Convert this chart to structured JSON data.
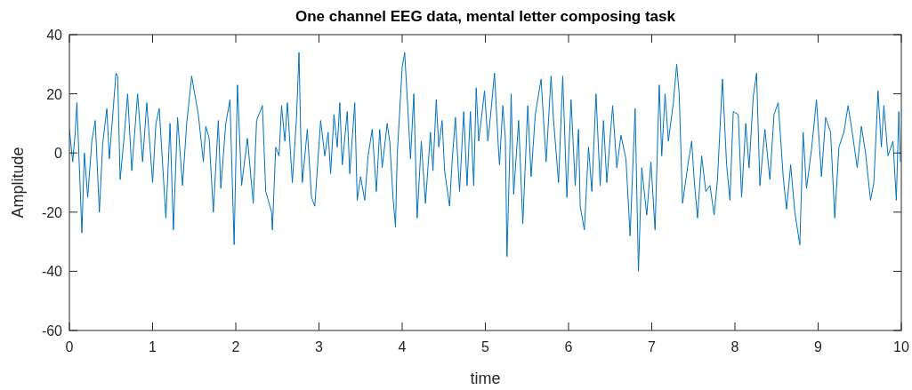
{
  "chart_data": {
    "type": "line",
    "title": "One channel EEG data, mental letter composing task",
    "xlabel": "time",
    "ylabel": "Amplitude",
    "xlim": [
      0,
      10
    ],
    "ylim": [
      -60,
      40
    ],
    "xticks": [
      0,
      1,
      2,
      3,
      4,
      5,
      6,
      7,
      8,
      9,
      10
    ],
    "yticks": [
      -60,
      -40,
      -20,
      0,
      20,
      40
    ],
    "marker": "none",
    "line_style": "solid",
    "series": [
      {
        "color": "#0072bd",
        "x": [
          0,
          0.04,
          0.07,
          0.09,
          0.15,
          0.18,
          0.22,
          0.27,
          0.31,
          0.36,
          0.4,
          0.45,
          0.48,
          0.56,
          0.58,
          0.61,
          0.66,
          0.7,
          0.75,
          0.82,
          0.88,
          0.93,
          1.0,
          1.04,
          1.08,
          1.16,
          1.21,
          1.25,
          1.3,
          1.36,
          1.41,
          1.47,
          1.5,
          1.55,
          1.61,
          1.64,
          1.68,
          1.73,
          1.79,
          1.82,
          1.88,
          1.93,
          1.98,
          2.02,
          2.07,
          2.14,
          2.21,
          2.25,
          2.32,
          2.36,
          2.43,
          2.44,
          2.48,
          2.52,
          2.55,
          2.59,
          2.62,
          2.68,
          2.73,
          2.76,
          2.78,
          2.8,
          2.86,
          2.91,
          2.95,
          3.02,
          3.07,
          3.11,
          3.14,
          3.18,
          3.22,
          3.25,
          3.28,
          3.34,
          3.37,
          3.43,
          3.46,
          3.5,
          3.55,
          3.59,
          3.64,
          3.69,
          3.73,
          3.76,
          3.82,
          3.85,
          3.89,
          3.92,
          3.94,
          4.0,
          4.03,
          4.07,
          4.1,
          4.14,
          4.18,
          4.23,
          4.28,
          4.34,
          4.37,
          4.41,
          4.44,
          4.48,
          4.51,
          4.57,
          4.6,
          4.64,
          4.69,
          4.74,
          4.78,
          4.82,
          4.86,
          4.89,
          4.92,
          4.99,
          5.03,
          5.06,
          5.11,
          5.16,
          5.17,
          5.21,
          5.24,
          5.26,
          5.3,
          5.31,
          5.34,
          5.4,
          5.45,
          5.51,
          5.55,
          5.6,
          5.67,
          5.73,
          5.79,
          5.82,
          5.88,
          5.93,
          5.98,
          6.03,
          6.08,
          6.12,
          6.14,
          6.19,
          6.24,
          6.28,
          6.33,
          6.38,
          6.42,
          6.46,
          6.51,
          6.53,
          6.58,
          6.63,
          6.69,
          6.74,
          6.8,
          6.84,
          6.88,
          6.94,
          6.99,
          7.04,
          7.09,
          7.12,
          7.16,
          7.2,
          7.26,
          7.3,
          7.33,
          7.37,
          7.44,
          7.48,
          7.51,
          7.55,
          7.6,
          7.65,
          7.7,
          7.75,
          7.79,
          7.85,
          7.9,
          7.94,
          7.98,
          8.04,
          8.08,
          8.13,
          8.17,
          8.22,
          8.26,
          8.3,
          8.36,
          8.42,
          8.47,
          8.52,
          8.58,
          8.62,
          8.67,
          8.72,
          8.78,
          8.82,
          8.86,
          8.92,
          8.98,
          9.04,
          9.09,
          9.15,
          9.2,
          9.25,
          9.31,
          9.36,
          9.41,
          9.47,
          9.52,
          9.57,
          9.63,
          9.67,
          9.72,
          9.76,
          9.79,
          9.84,
          9.9,
          9.94,
          9.97,
          9.99
        ],
        "values": [
          8,
          -3,
          7,
          17,
          -27,
          0,
          -15,
          4,
          11,
          -20,
          3,
          15,
          -2,
          27,
          26,
          -9,
          6,
          20,
          -6,
          20,
          -3,
          17,
          -10,
          10,
          15,
          -22,
          10,
          -26,
          12,
          -11,
          10,
          26,
          21,
          13,
          -3,
          9,
          5,
          -20,
          11,
          -12,
          10,
          18,
          -31,
          23,
          -11,
          5,
          -17,
          11,
          16,
          -13,
          -20,
          -26,
          2,
          -1,
          16,
          4,
          17,
          -10,
          12,
          34,
          7,
          -10,
          8,
          -15,
          -18,
          11,
          -1,
          7,
          -7,
          13,
          2,
          17,
          -4,
          14,
          -7,
          17,
          -16,
          -8,
          -16,
          -1,
          8,
          -13,
          8,
          -5,
          10,
          4,
          -15,
          -25,
          -1,
          29,
          34,
          14,
          -2,
          20,
          -22,
          4,
          -17,
          7,
          -6,
          18,
          2,
          11,
          -6,
          -18,
          -3,
          12,
          -13,
          14,
          -11,
          14,
          -11,
          22,
          4,
          21,
          4,
          12,
          27,
          0,
          -4,
          16,
          5,
          -35,
          7,
          20,
          -14,
          11,
          -24,
          16,
          -8,
          13,
          25,
          -3,
          26,
          11,
          -10,
          26,
          -15,
          18,
          -11,
          8,
          -18,
          -26,
          2,
          -13,
          20,
          -11,
          11,
          -10,
          9,
          16,
          -5,
          6,
          -2,
          -28,
          15,
          -40,
          -5,
          -21,
          -3,
          -26,
          23,
          -1,
          20,
          4,
          17,
          30,
          20,
          -17,
          -3,
          4,
          -9,
          -22,
          -1,
          -13,
          -11,
          -21,
          -9,
          25,
          -4,
          -16,
          14,
          13,
          -15,
          10,
          -5,
          19,
          27,
          -11,
          8,
          -9,
          13,
          17,
          -8,
          -19,
          -4,
          -20,
          -31,
          7,
          -12,
          1,
          18,
          -8,
          12,
          7,
          -22,
          2,
          7,
          16,
          7,
          -5,
          9,
          0,
          -16,
          -10,
          21,
          2,
          16,
          -1,
          4,
          -16,
          14,
          -3
        ]
      }
    ]
  }
}
